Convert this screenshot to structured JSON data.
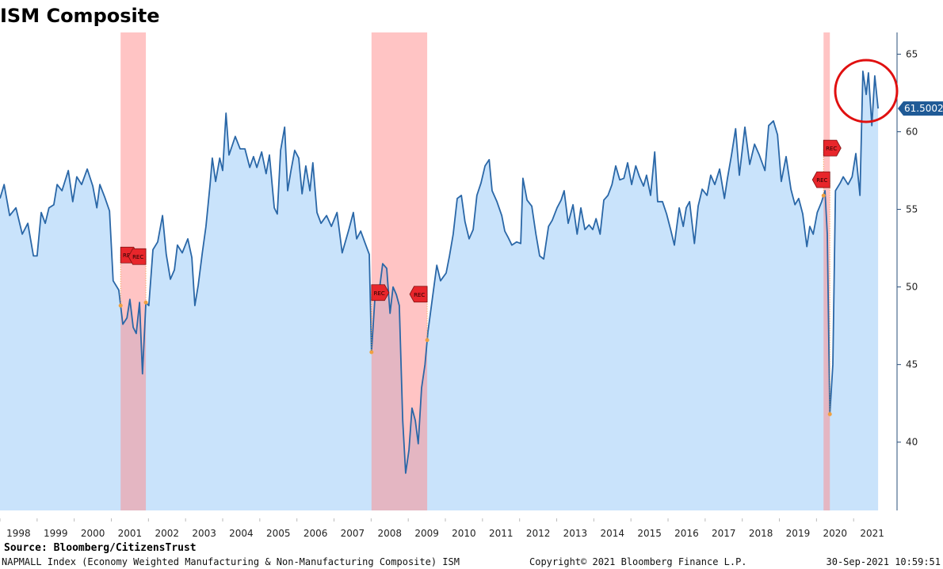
{
  "chart_data": {
    "type": "area",
    "title": "ISM Composite",
    "source": "Source: Bloomberg/CitizensTrust",
    "footer_left": "NAPMALL Index (Economy Weighted Manufacturing & Non-Manufacturing Composite) ISM",
    "footer_center": "Copyright© 2021 Bloomberg Finance L.P.",
    "footer_right": "30-Sep-2021 10:59:51",
    "recession_label": "REC",
    "last_value_label": "61.5002",
    "line_color": "#2a67a7",
    "fill_color": "#c9e3fb",
    "recession_color": "#ff8a8a",
    "recessions": [
      {
        "start": 2001.25,
        "end": 2001.93
      },
      {
        "start": 2008.01,
        "end": 2009.51
      },
      {
        "start": 2020.19,
        "end": 2020.36
      }
    ],
    "x": [
      1998.0,
      1998.11,
      1998.26,
      1998.43,
      1998.6,
      1998.75,
      1998.9,
      1999.0,
      1999.11,
      1999.22,
      1999.32,
      1999.45,
      1999.54,
      1999.67,
      1999.84,
      1999.96,
      2000.07,
      2000.2,
      2000.35,
      2000.5,
      2000.61,
      2000.69,
      2000.82,
      2000.95,
      2001.05,
      2001.2,
      2001.31,
      2001.42,
      2001.5,
      2001.59,
      2001.67,
      2001.76,
      2001.84,
      2001.93,
      2002.01,
      2002.12,
      2002.25,
      2002.38,
      2002.48,
      2002.59,
      2002.7,
      2002.78,
      2002.91,
      2003.06,
      2003.17,
      2003.25,
      2003.34,
      2003.45,
      2003.55,
      2003.66,
      2003.72,
      2003.81,
      2003.92,
      2004.0,
      2004.09,
      2004.17,
      2004.34,
      2004.47,
      2004.6,
      2004.73,
      2004.83,
      2004.92,
      2005.05,
      2005.17,
      2005.26,
      2005.39,
      2005.47,
      2005.56,
      2005.67,
      2005.75,
      2005.84,
      2005.94,
      2006.05,
      2006.14,
      2006.24,
      2006.35,
      2006.43,
      2006.54,
      2006.65,
      2006.8,
      2006.93,
      2007.08,
      2007.22,
      2007.4,
      2007.52,
      2007.61,
      2007.72,
      2007.84,
      2007.95,
      2008.01,
      2008.12,
      2008.21,
      2008.31,
      2008.42,
      2008.51,
      2008.59,
      2008.68,
      2008.76,
      2008.85,
      2008.93,
      2009.02,
      2009.1,
      2009.19,
      2009.27,
      2009.36,
      2009.45,
      2009.53,
      2009.64,
      2009.77,
      2009.87,
      2010.02,
      2010.11,
      2010.21,
      2010.32,
      2010.43,
      2010.53,
      2010.64,
      2010.75,
      2010.85,
      2010.96,
      2011.07,
      2011.18,
      2011.26,
      2011.39,
      2011.52,
      2011.6,
      2011.69,
      2011.79,
      2011.92,
      2012.03,
      2012.09,
      2012.2,
      2012.33,
      2012.44,
      2012.54,
      2012.65,
      2012.78,
      2012.88,
      2013.01,
      2013.12,
      2013.2,
      2013.31,
      2013.44,
      2013.55,
      2013.65,
      2013.76,
      2013.87,
      2013.97,
      2014.06,
      2014.17,
      2014.27,
      2014.38,
      2014.49,
      2014.59,
      2014.7,
      2014.81,
      2014.91,
      2015.02,
      2015.13,
      2015.23,
      2015.34,
      2015.42,
      2015.53,
      2015.64,
      2015.72,
      2015.85,
      2015.96,
      2016.07,
      2016.17,
      2016.3,
      2016.41,
      2016.49,
      2016.58,
      2016.71,
      2016.81,
      2016.92,
      2017.05,
      2017.15,
      2017.26,
      2017.39,
      2017.52,
      2017.6,
      2017.71,
      2017.82,
      2017.92,
      2018.07,
      2018.2,
      2018.33,
      2018.46,
      2018.61,
      2018.71,
      2018.84,
      2018.95,
      2019.05,
      2019.18,
      2019.31,
      2019.42,
      2019.52,
      2019.63,
      2019.74,
      2019.82,
      2019.91,
      2020.02,
      2020.14,
      2020.23,
      2020.29,
      2020.36,
      2020.44,
      2020.51,
      2020.64,
      2020.72,
      2020.85,
      2020.96,
      2021.06,
      2021.17,
      2021.25,
      2021.34,
      2021.4,
      2021.49,
      2021.57,
      2021.66
    ],
    "values": [
      55.7,
      56.6,
      54.6,
      55.1,
      53.4,
      54.1,
      52.0,
      52.0,
      54.8,
      54.1,
      55.1,
      55.3,
      56.6,
      56.2,
      57.5,
      55.5,
      57.1,
      56.6,
      57.6,
      56.5,
      55.1,
      56.6,
      55.8,
      54.9,
      50.4,
      49.8,
      47.6,
      48.0,
      49.2,
      47.4,
      47.0,
      49.0,
      44.4,
      49.0,
      48.8,
      52.4,
      52.9,
      54.6,
      52.1,
      50.5,
      51.1,
      52.7,
      52.2,
      53.1,
      51.9,
      48.8,
      50.1,
      52.2,
      53.9,
      56.6,
      58.3,
      56.8,
      58.3,
      57.5,
      61.2,
      58.5,
      59.7,
      58.9,
      58.9,
      57.7,
      58.4,
      57.7,
      58.7,
      57.3,
      58.5,
      55.1,
      54.7,
      58.8,
      60.3,
      56.2,
      57.5,
      58.8,
      58.3,
      56.0,
      57.8,
      56.2,
      58.0,
      54.8,
      54.1,
      54.6,
      53.9,
      54.8,
      52.2,
      53.7,
      54.8,
      53.1,
      53.6,
      52.8,
      52.1,
      45.8,
      50.0,
      49.6,
      51.5,
      51.2,
      48.3,
      50.0,
      49.5,
      48.8,
      41.4,
      38.0,
      39.5,
      42.2,
      41.4,
      39.9,
      43.5,
      45.0,
      47.1,
      49.1,
      51.4,
      50.4,
      50.9,
      52.0,
      53.4,
      55.7,
      55.9,
      54.2,
      53.1,
      53.7,
      55.9,
      56.7,
      57.8,
      58.2,
      56.2,
      55.5,
      54.6,
      53.6,
      53.2,
      52.7,
      52.9,
      52.8,
      57.0,
      55.6,
      55.2,
      53.4,
      52.0,
      51.8,
      53.9,
      54.3,
      55.1,
      55.6,
      56.2,
      54.1,
      55.3,
      53.4,
      55.1,
      53.7,
      54.0,
      53.7,
      54.4,
      53.4,
      55.6,
      55.9,
      56.6,
      57.8,
      56.9,
      57.0,
      58.0,
      56.6,
      57.8,
      57.1,
      56.5,
      57.2,
      55.9,
      58.7,
      55.5,
      55.5,
      54.7,
      53.7,
      52.7,
      55.1,
      53.9,
      55.1,
      55.5,
      52.8,
      55.2,
      56.3,
      55.9,
      57.2,
      56.6,
      57.6,
      55.7,
      57.0,
      58.5,
      60.2,
      57.2,
      60.3,
      57.9,
      59.2,
      58.5,
      57.5,
      60.4,
      60.7,
      59.8,
      56.8,
      58.4,
      56.3,
      55.3,
      55.7,
      54.7,
      52.6,
      53.9,
      53.4,
      54.8,
      55.5,
      56.2,
      53.4,
      41.8,
      45.0,
      56.2,
      56.7,
      57.1,
      56.6,
      57.1,
      58.6,
      55.9,
      63.9,
      62.4,
      63.8,
      60.4,
      63.6,
      61.5002
    ],
    "xlim": [
      1998.0,
      2022.17
    ],
    "xticks": [
      1998,
      1999,
      2000,
      2001,
      2002,
      2003,
      2004,
      2005,
      2006,
      2007,
      2008,
      2009,
      2010,
      2011,
      2012,
      2013,
      2014,
      2015,
      2016,
      2017,
      2018,
      2019,
      2020,
      2021
    ],
    "ylim": [
      35.6,
      66.4
    ],
    "yticks": [
      40,
      45,
      50,
      55,
      60,
      65
    ]
  }
}
